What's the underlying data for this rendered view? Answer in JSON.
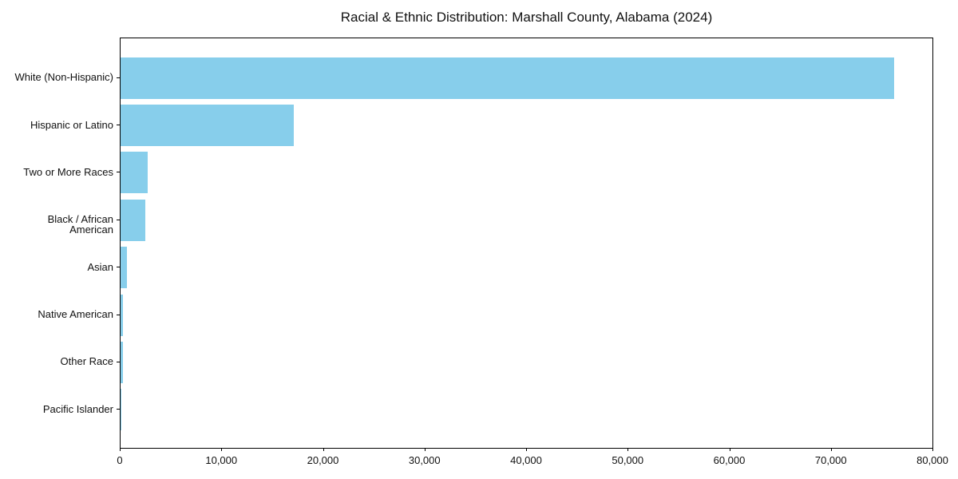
{
  "chart_data": {
    "type": "bar",
    "orientation": "horizontal",
    "title": "Racial & Ethnic Distribution: Marshall County, Alabama (2024)",
    "categories": [
      "White (Non-Hispanic)",
      "Hispanic or Latino",
      "Two or More Races",
      "Black / African American",
      "Asian",
      "Native American",
      "Other Race",
      "Pacific Islander"
    ],
    "values": [
      76200,
      17100,
      2700,
      2450,
      600,
      200,
      250,
      40
    ],
    "title_text": "Racial & Ethnic Distribution: Marshall County, Alabama (2024)",
    "xlabel": "",
    "ylabel": "",
    "xlim": [
      0,
      80000
    ],
    "x_ticks": [
      0,
      10000,
      20000,
      30000,
      40000,
      50000,
      60000,
      70000,
      80000
    ],
    "x_tick_labels": [
      "0",
      "10,000",
      "20,000",
      "30,000",
      "40,000",
      "50,000",
      "60,000",
      "70,000",
      "80,000"
    ],
    "bar_color": "#87CEEB",
    "frame_color": "#000000",
    "grid": false,
    "legend": "none"
  }
}
